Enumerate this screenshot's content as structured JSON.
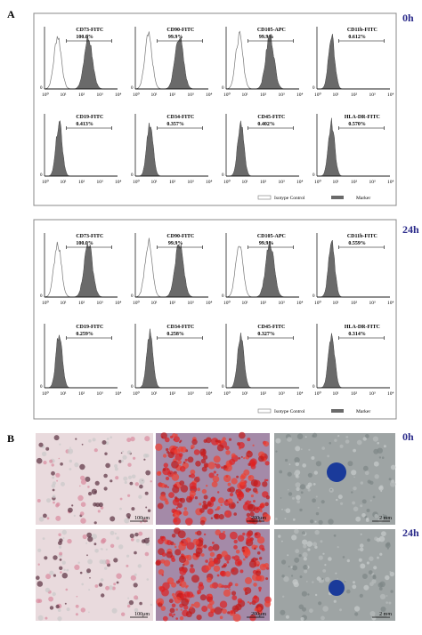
{
  "panel_a": {
    "label": "A",
    "axis_ticks": [
      "10⁰",
      "10¹",
      "10²",
      "10³",
      "10⁴"
    ],
    "y_zero": "0",
    "legend": {
      "isotype": "Isotype Control",
      "marker": "Marker"
    },
    "groups": [
      {
        "time": "0h",
        "markers": [
          {
            "name": "CD73-FITC",
            "percent": "100.0%"
          },
          {
            "name": "CD90-FITC",
            "percent": "99.9%"
          },
          {
            "name": "CD105-APC",
            "percent": "99.9%"
          },
          {
            "name": "CD11b-FITC",
            "percent": "0.612%"
          },
          {
            "name": "CD19-FITC",
            "percent": "0.413%"
          },
          {
            "name": "CD34-FITC",
            "percent": "0.357%"
          },
          {
            "name": "CD45-FITC",
            "percent": "0.402%"
          },
          {
            "name": "HLA-DR-FITC",
            "percent": "0.570%"
          }
        ]
      },
      {
        "time": "24h",
        "markers": [
          {
            "name": "CD73-FITC",
            "percent": "100.0%"
          },
          {
            "name": "CD90-FITC",
            "percent": "99.9%"
          },
          {
            "name": "CD105-APC",
            "percent": "99.9%"
          },
          {
            "name": "CD11b-FITC",
            "percent": "0.559%"
          },
          {
            "name": "CD19-FITC",
            "percent": "0.259%"
          },
          {
            "name": "CD34-FITC",
            "percent": "0.258%"
          },
          {
            "name": "CD45-FITC",
            "percent": "0.327%"
          },
          {
            "name": "HLA-DR-FITC",
            "percent": "0.314%"
          }
        ]
      }
    ]
  },
  "panel_b": {
    "label": "B",
    "rows": [
      {
        "time": "0h"
      },
      {
        "time": "24h"
      }
    ],
    "scale_bars": [
      "100μm",
      "200μm",
      "2 mm"
    ]
  }
}
